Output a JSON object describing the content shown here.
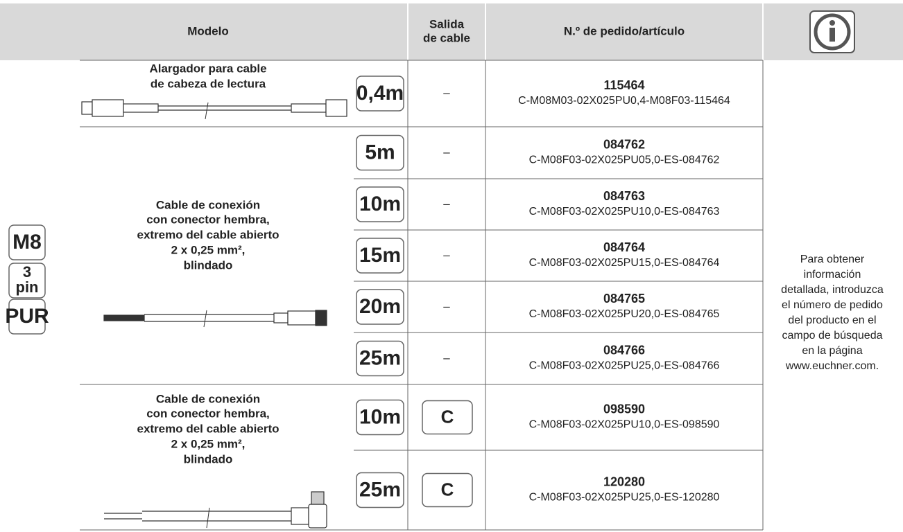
{
  "header": {
    "model": "Modelo",
    "cable_outlet": [
      "Salida",
      "de cable"
    ],
    "order": "N.º de pedido/artículo"
  },
  "badges": [
    [
      "M8"
    ],
    [
      "3",
      "pin"
    ],
    [
      "PUR"
    ]
  ],
  "groups": [
    {
      "description": [
        "Alargador para cable",
        "de cabeza de lectura"
      ],
      "rows": [
        {
          "length": "0,4m",
          "outlet": "–",
          "order_no": "115464",
          "type_code": "C-M08M03-02X025PU0,4-M08F03-115464"
        }
      ]
    },
    {
      "description": [
        "Cable de conexión",
        "con conector hembra,",
        "extremo del cable abierto",
        "2 x 0,25 mm²,",
        "blindado"
      ],
      "rows": [
        {
          "length": "5m",
          "outlet": "–",
          "order_no": "084762",
          "type_code": "C-M08F03-02X025PU05,0-ES-084762"
        },
        {
          "length": "10m",
          "outlet": "–",
          "order_no": "084763",
          "type_code": "C-M08F03-02X025PU10,0-ES-084763"
        },
        {
          "length": "15m",
          "outlet": "–",
          "order_no": "084764",
          "type_code": "C-M08F03-02X025PU15,0-ES-084764"
        },
        {
          "length": "20m",
          "outlet": "–",
          "order_no": "084765",
          "type_code": "C-M08F03-02X025PU20,0-ES-084765"
        },
        {
          "length": "25m",
          "outlet": "–",
          "order_no": "084766",
          "type_code": "C-M08F03-02X025PU25,0-ES-084766"
        }
      ]
    },
    {
      "description": [
        "Cable de conexión",
        "con conector hembra,",
        "extremo del cable abierto",
        "2 x 0,25 mm²,",
        "blindado"
      ],
      "rows": [
        {
          "length": "10m",
          "outlet": "C",
          "order_no": "098590",
          "type_code": "C-M08F03-02X025PU10,0-ES-098590"
        },
        {
          "length": "25m",
          "outlet": "C",
          "order_no": "120280",
          "type_code": "C-M08F03-02X025PU25,0-ES-120280"
        }
      ]
    }
  ],
  "info": [
    "Para obtener",
    "información",
    "detallada, introduzca",
    "el número de pedido",
    "del producto en el",
    "campo de búsqueda",
    "en la página",
    "www.euchner.com."
  ]
}
